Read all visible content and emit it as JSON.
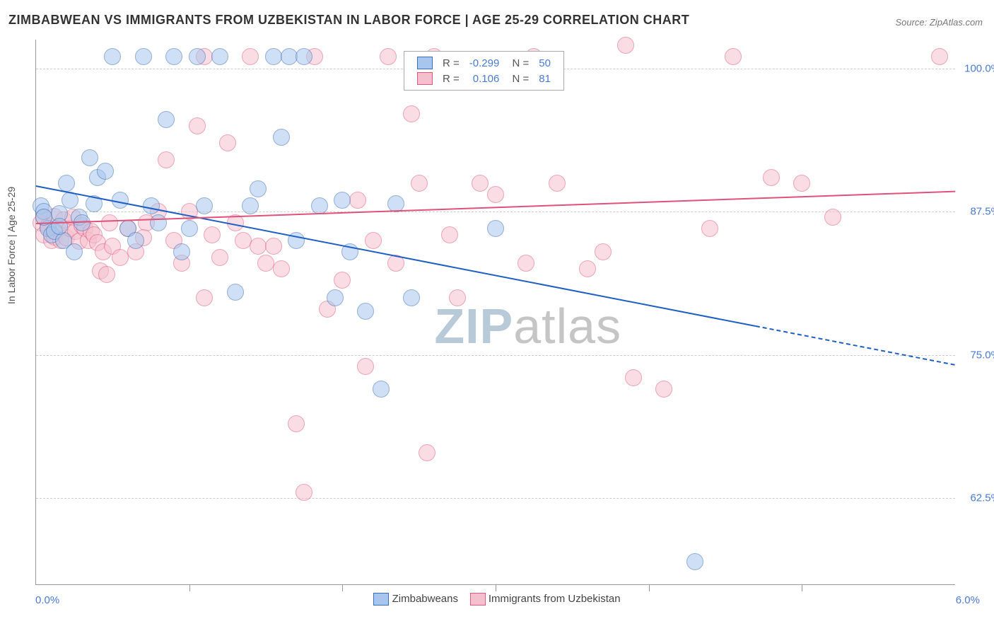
{
  "title": "ZIMBABWEAN VS IMMIGRANTS FROM UZBEKISTAN IN LABOR FORCE | AGE 25-29 CORRELATION CHART",
  "source": "Source: ZipAtlas.com",
  "ylabel": "In Labor Force | Age 25-29",
  "chart": {
    "type": "scatter",
    "xlim": [
      0,
      6
    ],
    "ylim": [
      55,
      102.5
    ],
    "ytick_values": [
      62.5,
      75.0,
      87.5,
      100.0
    ],
    "ytick_labels": [
      "62.5%",
      "75.0%",
      "87.5%",
      "100.0%"
    ],
    "xtick_minor_step": 1,
    "x_start_label": "0.0%",
    "x_end_label": "6.0%",
    "grid_color": "#cccccc",
    "background_color": "#ffffff",
    "point_radius": 11,
    "point_opacity": 0.55,
    "point_stroke_width": 1.2,
    "trend_width": 2.5
  },
  "series": [
    {
      "name": "Zimbabweans",
      "color_fill": "#a8c6ed",
      "color_stroke": "#3a6fb7",
      "line_color": "#1f5fc4",
      "R": "-0.299",
      "N": "50",
      "trend": {
        "x1": 0,
        "y1": 89.8,
        "x2": 6,
        "y2": 74.2,
        "solid_until_x": 4.7
      },
      "points": [
        [
          0.03,
          88.0
        ],
        [
          0.05,
          87.5
        ],
        [
          0.08,
          86.0
        ],
        [
          0.1,
          85.5
        ],
        [
          0.12,
          85.8
        ],
        [
          0.15,
          87.3
        ],
        [
          0.18,
          85.0
        ],
        [
          0.2,
          90.0
        ],
        [
          0.22,
          88.5
        ],
        [
          0.25,
          84.0
        ],
        [
          0.28,
          87.0
        ],
        [
          0.05,
          87.0
        ],
        [
          0.3,
          86.5
        ],
        [
          0.35,
          92.2
        ],
        [
          0.38,
          88.2
        ],
        [
          0.4,
          90.5
        ],
        [
          0.45,
          91.0
        ],
        [
          0.5,
          101.0
        ],
        [
          0.55,
          88.5
        ],
        [
          0.6,
          86.0
        ],
        [
          0.65,
          85.0
        ],
        [
          0.7,
          101.0
        ],
        [
          0.75,
          88.0
        ],
        [
          0.8,
          86.5
        ],
        [
          0.85,
          95.5
        ],
        [
          0.9,
          101.0
        ],
        [
          0.95,
          84.0
        ],
        [
          1.0,
          86.0
        ],
        [
          1.05,
          101.0
        ],
        [
          1.1,
          88.0
        ],
        [
          1.2,
          101.0
        ],
        [
          1.3,
          80.5
        ],
        [
          1.4,
          88.0
        ],
        [
          1.45,
          89.5
        ],
        [
          1.55,
          101.0
        ],
        [
          1.6,
          94.0
        ],
        [
          1.65,
          101.0
        ],
        [
          1.7,
          85.0
        ],
        [
          1.75,
          101.0
        ],
        [
          1.85,
          88.0
        ],
        [
          1.95,
          80.0
        ],
        [
          2.0,
          88.5
        ],
        [
          2.05,
          84.0
        ],
        [
          2.15,
          78.8
        ],
        [
          2.25,
          72.0
        ],
        [
          2.35,
          88.2
        ],
        [
          2.45,
          80.0
        ],
        [
          3.0,
          86.0
        ],
        [
          4.3,
          57.0
        ],
        [
          0.15,
          86.2
        ]
      ]
    },
    {
      "name": "Immigrants from Uzbekistan",
      "color_fill": "#f5c0ce",
      "color_stroke": "#e05a7d",
      "line_color": "#e0527a",
      "R": "0.106",
      "N": "81",
      "trend": {
        "x1": 0,
        "y1": 86.5,
        "x2": 6,
        "y2": 89.3,
        "solid_until_x": 6
      },
      "points": [
        [
          0.03,
          86.5
        ],
        [
          0.05,
          87.0
        ],
        [
          0.05,
          85.5
        ],
        [
          0.08,
          86.2
        ],
        [
          0.1,
          85.0
        ],
        [
          0.12,
          87.1
        ],
        [
          0.12,
          85.3
        ],
        [
          0.14,
          86.0
        ],
        [
          0.16,
          85.0
        ],
        [
          0.18,
          86.8
        ],
        [
          0.2,
          85.2
        ],
        [
          0.22,
          86.0
        ],
        [
          0.24,
          87.0
        ],
        [
          0.26,
          85.8
        ],
        [
          0.28,
          84.9
        ],
        [
          0.3,
          86.3
        ],
        [
          0.32,
          86.0
        ],
        [
          0.34,
          85.0
        ],
        [
          0.36,
          85.8
        ],
        [
          0.38,
          85.5
        ],
        [
          0.4,
          84.8
        ],
        [
          0.42,
          82.3
        ],
        [
          0.44,
          84.0
        ],
        [
          0.46,
          82.0
        ],
        [
          0.48,
          86.5
        ],
        [
          0.5,
          84.5
        ],
        [
          0.55,
          83.5
        ],
        [
          0.6,
          86.0
        ],
        [
          0.65,
          84.0
        ],
        [
          0.72,
          86.5
        ],
        [
          0.8,
          87.5
        ],
        [
          0.85,
          92.0
        ],
        [
          0.9,
          85.0
        ],
        [
          0.95,
          83.0
        ],
        [
          1.0,
          87.5
        ],
        [
          1.05,
          95.0
        ],
        [
          1.1,
          80.0
        ],
        [
          1.1,
          101.0
        ],
        [
          1.15,
          85.5
        ],
        [
          1.2,
          83.5
        ],
        [
          1.25,
          93.5
        ],
        [
          1.3,
          86.5
        ],
        [
          1.35,
          85.0
        ],
        [
          1.4,
          101.0
        ],
        [
          1.45,
          84.5
        ],
        [
          1.5,
          83.0
        ],
        [
          1.55,
          84.5
        ],
        [
          1.6,
          82.5
        ],
        [
          1.7,
          69.0
        ],
        [
          1.75,
          63.0
        ],
        [
          1.82,
          101.0
        ],
        [
          1.9,
          79.0
        ],
        [
          2.0,
          81.5
        ],
        [
          2.1,
          88.5
        ],
        [
          2.15,
          74.0
        ],
        [
          2.2,
          85.0
        ],
        [
          2.3,
          101.0
        ],
        [
          2.35,
          83.0
        ],
        [
          2.45,
          96.0
        ],
        [
          2.5,
          90.0
        ],
        [
          2.55,
          66.5
        ],
        [
          2.6,
          101.0
        ],
        [
          2.7,
          85.5
        ],
        [
          2.75,
          80.0
        ],
        [
          2.9,
          90.0
        ],
        [
          3.0,
          89.0
        ],
        [
          3.2,
          83.0
        ],
        [
          3.25,
          101.0
        ],
        [
          3.4,
          90.0
        ],
        [
          3.6,
          82.5
        ],
        [
          3.7,
          84.0
        ],
        [
          3.85,
          102.0
        ],
        [
          3.9,
          73.0
        ],
        [
          4.1,
          72.0
        ],
        [
          4.4,
          86.0
        ],
        [
          4.55,
          101.0
        ],
        [
          4.8,
          90.5
        ],
        [
          5.0,
          90.0
        ],
        [
          5.2,
          87.0
        ],
        [
          5.9,
          101.0
        ],
        [
          0.7,
          85.2
        ]
      ]
    }
  ],
  "legend_top": {
    "r_label": "R =",
    "n_label": "N ="
  },
  "bottom_legend": {
    "label1": "Zimbabweans",
    "label2": "Immigrants from Uzbekistan"
  },
  "watermark": {
    "text_zip": "ZIP",
    "text_atlas": "atlas",
    "color_zip": "#b8c9d8",
    "color_atlas": "#c5c5c5"
  }
}
